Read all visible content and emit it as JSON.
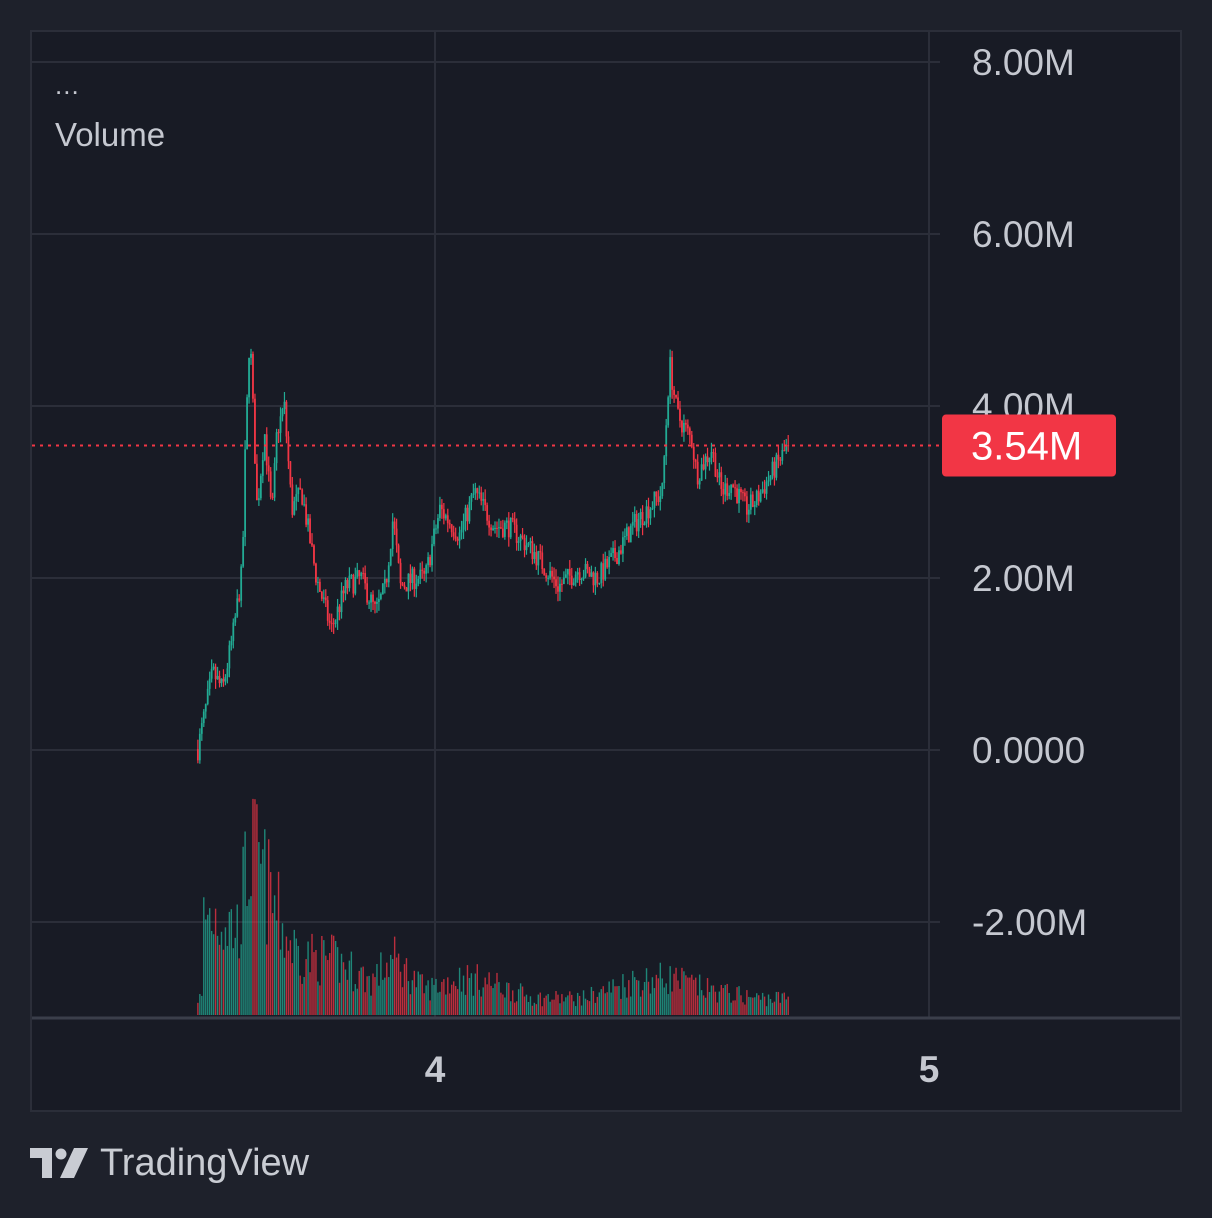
{
  "legend": {
    "menu_dots": "...",
    "indicator_label": "Volume"
  },
  "brand": {
    "name": "TradingView",
    "logo_icon": "tradingview-logo-icon"
  },
  "colors": {
    "background": "#181b25",
    "grid": "#2b2e39",
    "axis_text": "#c5c8d0",
    "up": "#22ab94",
    "down": "#f23645",
    "price_line": "#f23645"
  },
  "chart_data": {
    "type": "candlestick",
    "y_ticks": [
      {
        "value": 8000000,
        "label": "8.00M"
      },
      {
        "value": 6000000,
        "label": "6.00M"
      },
      {
        "value": 4000000,
        "label": "4.00M"
      },
      {
        "value": 2000000,
        "label": "2.00M"
      },
      {
        "value": 0,
        "label": "0.0000"
      },
      {
        "value": -2000000,
        "label": "-2.00M"
      }
    ],
    "ylim": [
      -3080000,
      8350000
    ],
    "x_ticks": [
      {
        "value": 4,
        "label": "4"
      },
      {
        "value": 5,
        "label": "5"
      }
    ],
    "xlim": [
      3.2,
      5.5
    ],
    "last_price": {
      "value": 3540000,
      "label": "3.54M"
    },
    "price_waypoints": [
      [
        3.52,
        10000
      ],
      [
        3.55,
        900000
      ],
      [
        3.57,
        700000
      ],
      [
        3.59,
        1300000
      ],
      [
        3.61,
        2100000
      ],
      [
        3.615,
        3300000
      ],
      [
        3.625,
        4900000
      ],
      [
        3.64,
        2800000
      ],
      [
        3.655,
        3700000
      ],
      [
        3.67,
        2700000
      ],
      [
        3.68,
        3700000
      ],
      [
        3.695,
        4000000
      ],
      [
        3.71,
        2800000
      ],
      [
        3.73,
        3000000
      ],
      [
        3.76,
        2000000
      ],
      [
        3.79,
        1400000
      ],
      [
        3.82,
        1900000
      ],
      [
        3.85,
        2000000
      ],
      [
        3.88,
        1600000
      ],
      [
        3.9,
        1900000
      ],
      [
        3.915,
        2700000
      ],
      [
        3.93,
        1900000
      ],
      [
        3.96,
        2000000
      ],
      [
        3.98,
        2000000
      ],
      [
        4.01,
        2800000
      ],
      [
        4.05,
        2500000
      ],
      [
        4.08,
        3000000
      ],
      [
        4.12,
        2600000
      ],
      [
        4.15,
        2600000
      ],
      [
        4.2,
        2300000
      ],
      [
        4.25,
        1900000
      ],
      [
        4.29,
        2100000
      ],
      [
        4.33,
        2000000
      ],
      [
        4.37,
        2300000
      ],
      [
        4.4,
        2600000
      ],
      [
        4.43,
        2800000
      ],
      [
        4.46,
        3000000
      ],
      [
        4.475,
        4500000
      ],
      [
        4.49,
        3900000
      ],
      [
        4.52,
        3600000
      ],
      [
        4.53,
        3200000
      ],
      [
        4.56,
        3500000
      ],
      [
        4.58,
        3000000
      ],
      [
        4.6,
        3100000
      ],
      [
        4.63,
        2800000
      ],
      [
        4.65,
        2900000
      ],
      [
        4.68,
        3200000
      ],
      [
        4.715,
        3540000
      ]
    ],
    "volume_peaks": [
      [
        3.53,
        0.58
      ],
      [
        3.56,
        0.6
      ],
      [
        3.6,
        0.5
      ],
      [
        3.625,
        0.95
      ],
      [
        3.64,
        0.9
      ],
      [
        3.7,
        0.45
      ],
      [
        3.73,
        0.35
      ],
      [
        3.8,
        0.32
      ],
      [
        3.87,
        0.2
      ],
      [
        3.915,
        0.33
      ],
      [
        3.98,
        0.15
      ],
      [
        4.05,
        0.22
      ],
      [
        4.1,
        0.2
      ],
      [
        4.2,
        0.1
      ],
      [
        4.3,
        0.1
      ],
      [
        4.4,
        0.2
      ],
      [
        4.475,
        0.22
      ],
      [
        4.55,
        0.15
      ],
      [
        4.65,
        0.1
      ],
      [
        4.715,
        0.1
      ]
    ]
  }
}
